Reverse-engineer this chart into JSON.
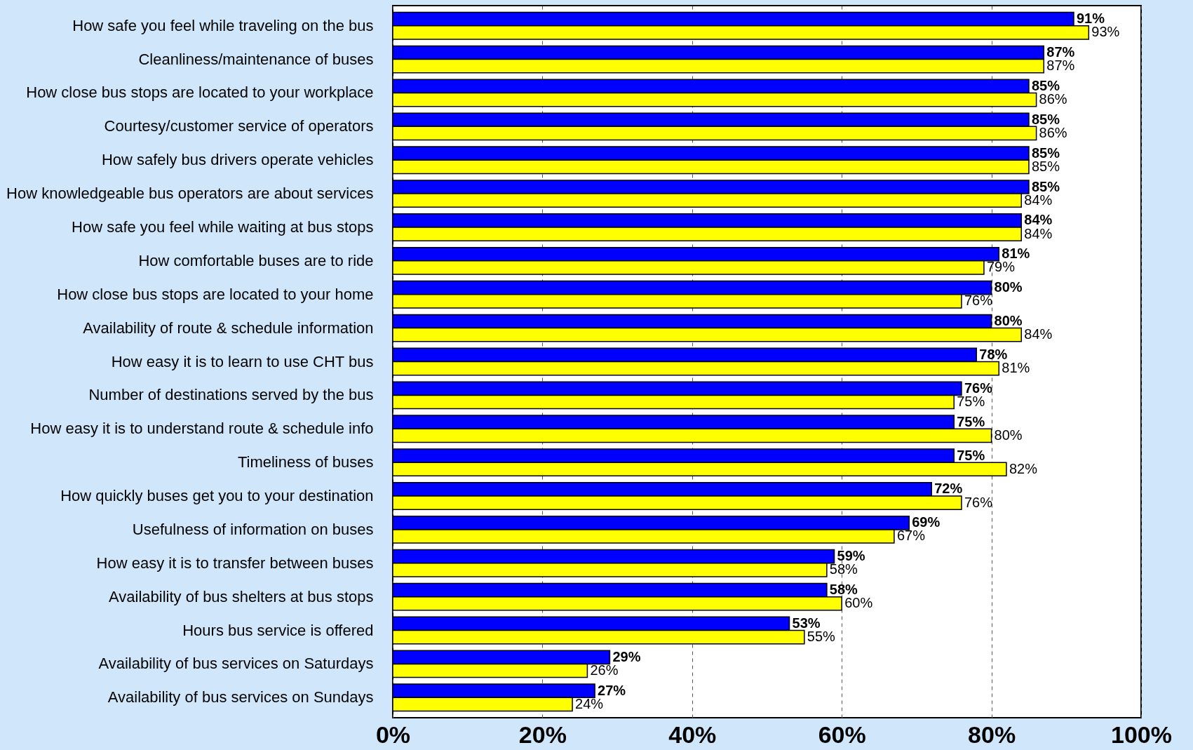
{
  "chart_data": {
    "type": "bar",
    "orientation": "horizontal",
    "categories": [
      "How safe you feel while traveling on the bus",
      "Cleanliness/maintenance of buses",
      "How close bus stops are located to your workplace",
      "Courtesy/customer service of operators",
      "How safely bus drivers operate vehicles",
      "How knowledgeable bus operators are about services",
      "How safe you feel while waiting at bus stops",
      "How comfortable buses are to ride",
      "How close bus stops are located to your home",
      "Availability of route & schedule information",
      "How easy it is to learn to use CHT bus",
      "Number of destinations served by the bus",
      "How easy it is to understand route & schedule info",
      "Timeliness of buses",
      "How quickly buses get you to your destination",
      "Usefulness of information on buses",
      "How easy it is to transfer between buses",
      "Availability of bus shelters at bus stops",
      "Hours bus service is offered",
      "Availability of bus services on Saturdays",
      "Availability of bus services on Sundays"
    ],
    "series": [
      {
        "color": "#0000ff",
        "values": [
          91,
          87,
          85,
          85,
          85,
          85,
          84,
          81,
          80,
          80,
          78,
          76,
          75,
          75,
          72,
          69,
          59,
          58,
          53,
          29,
          27
        ],
        "value_labels": [
          "91%",
          "87%",
          "85%",
          "85%",
          "85%",
          "85%",
          "84%",
          "81%",
          "80%",
          "80%",
          "78%",
          "76%",
          "75%",
          "75%",
          "72%",
          "69%",
          "59%",
          "58%",
          "53%",
          "29%",
          "27%"
        ]
      },
      {
        "color": "#ffff00",
        "values": [
          93,
          87,
          86,
          86,
          85,
          84,
          84,
          79,
          76,
          84,
          81,
          75,
          80,
          82,
          76,
          67,
          58,
          60,
          55,
          26,
          24
        ],
        "value_labels": [
          "93%",
          "87%",
          "86%",
          "86%",
          "85%",
          "84%",
          "84%",
          "79%",
          "76%",
          "84%",
          "81%",
          "75%",
          "80%",
          "82%",
          "76%",
          "67%",
          "58%",
          "60%",
          "55%",
          "26%",
          "24%"
        ]
      }
    ],
    "xlim": [
      0,
      100
    ],
    "xticks": [
      {
        "value": 0,
        "label": "0%"
      },
      {
        "value": 20,
        "label": "20%"
      },
      {
        "value": 40,
        "label": "40%"
      },
      {
        "value": 60,
        "label": "60%"
      },
      {
        "value": 80,
        "label": "80%"
      },
      {
        "value": 100,
        "label": "100%"
      }
    ],
    "grid": "x"
  }
}
